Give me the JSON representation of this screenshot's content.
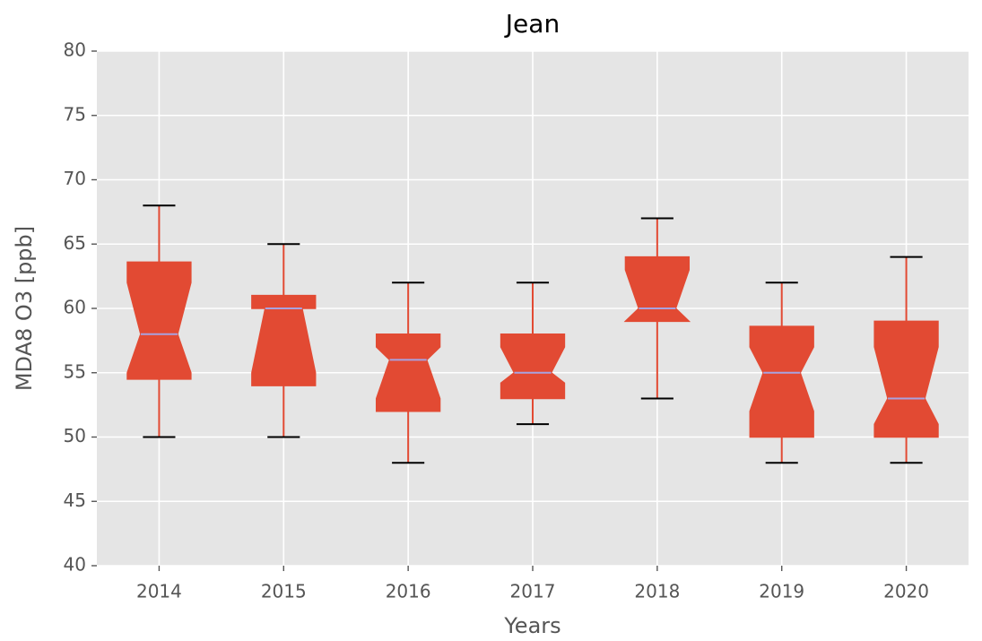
{
  "chart_data": {
    "type": "box",
    "title": "Jean",
    "x_label": "Years",
    "y_label": "MDA8 O3 [ppb]",
    "categories": [
      "2014",
      "2015",
      "2016",
      "2017",
      "2018",
      "2019",
      "2020"
    ],
    "whisker_low": [
      50,
      50,
      48,
      51,
      53,
      48,
      48
    ],
    "q1": [
      54.5,
      54,
      52,
      53,
      59,
      50,
      50
    ],
    "notch_low": [
      55,
      55,
      53,
      54.2,
      59,
      52,
      51
    ],
    "median": [
      58,
      60,
      56,
      55,
      60,
      55,
      53
    ],
    "notch_high": [
      62,
      60,
      57,
      57,
      63,
      57,
      57
    ],
    "q3": [
      63.6,
      61,
      58,
      58,
      64,
      58.6,
      59
    ],
    "whisker_high": [
      68,
      65,
      62,
      62,
      67,
      62,
      64
    ],
    "color": "#e24a33",
    "median_color": "#a8a2e0",
    "cap_color": "#000000",
    "ylim": [
      40,
      80
    ],
    "yticks": [
      40,
      45,
      50,
      55,
      60,
      65,
      70,
      75,
      80
    ],
    "grid": true
  }
}
